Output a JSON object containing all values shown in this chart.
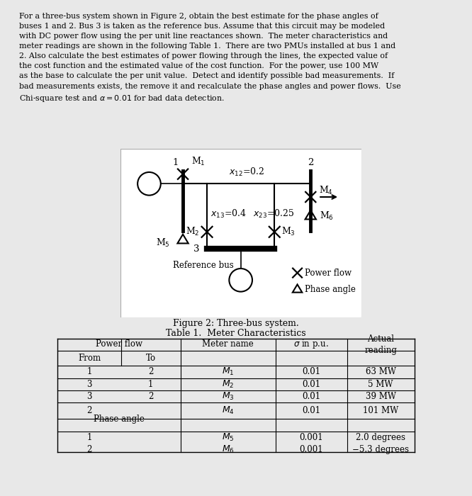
{
  "figure_caption": "Figure 2: Three-bus system.",
  "table_title": "Table 1.  Meter Characteristics",
  "bg_color": "#e8e8e8",
  "diagram_bg": "#ffffff",
  "para_lines": [
    "For a three-bus system shown in Figure 2, obtain the best estimate for the phase angles of",
    "buses 1 and 2. Bus 3 is taken as the reference bus. Assume that this circuit may be modeled",
    "with DC power flow using the per unit line reactances shown.  The meter characteristics and",
    "meter readings are shown in the following Table 1.  There are two PMUs installed at bus 1 and",
    "2. Also calculate the best estimates of power flowing through the lines, the expected value of",
    "the cost function and the estimated value of the cost function.  For the power, use 100 MW",
    "as the base to calculate the per unit value.  Detect and identify possible bad measurements.  If",
    "bad measurements exists, the remove it and recalculate the phase angles and power flows.  Use",
    "Chi-square test and $\\alpha = 0.01$ for bad data detection."
  ],
  "table_data": [
    {
      "from": "1",
      "to": "2",
      "meter": "M_1",
      "sigma": "0.01",
      "actual": "63 MW"
    },
    {
      "from": "3",
      "to": "1",
      "meter": "M_2",
      "sigma": "0.01",
      "actual": "5 MW"
    },
    {
      "from": "3",
      "to": "2",
      "meter": "M_3",
      "sigma": "0.01",
      "actual": "39 MW"
    },
    {
      "from": "2",
      "to": "",
      "meter": "M_4",
      "sigma": "0.01",
      "actual": "101 MW"
    },
    {
      "from": "Phase angle",
      "to": "",
      "meter": "",
      "sigma": "",
      "actual": ""
    },
    {
      "from": "1",
      "to": "",
      "meter": "M_5",
      "sigma": "0.001",
      "actual": "2.0 degrees"
    },
    {
      "from": "2",
      "to": "",
      "meter": "M_6",
      "sigma": "0.001",
      "actual": "−5.3 degrees"
    }
  ]
}
